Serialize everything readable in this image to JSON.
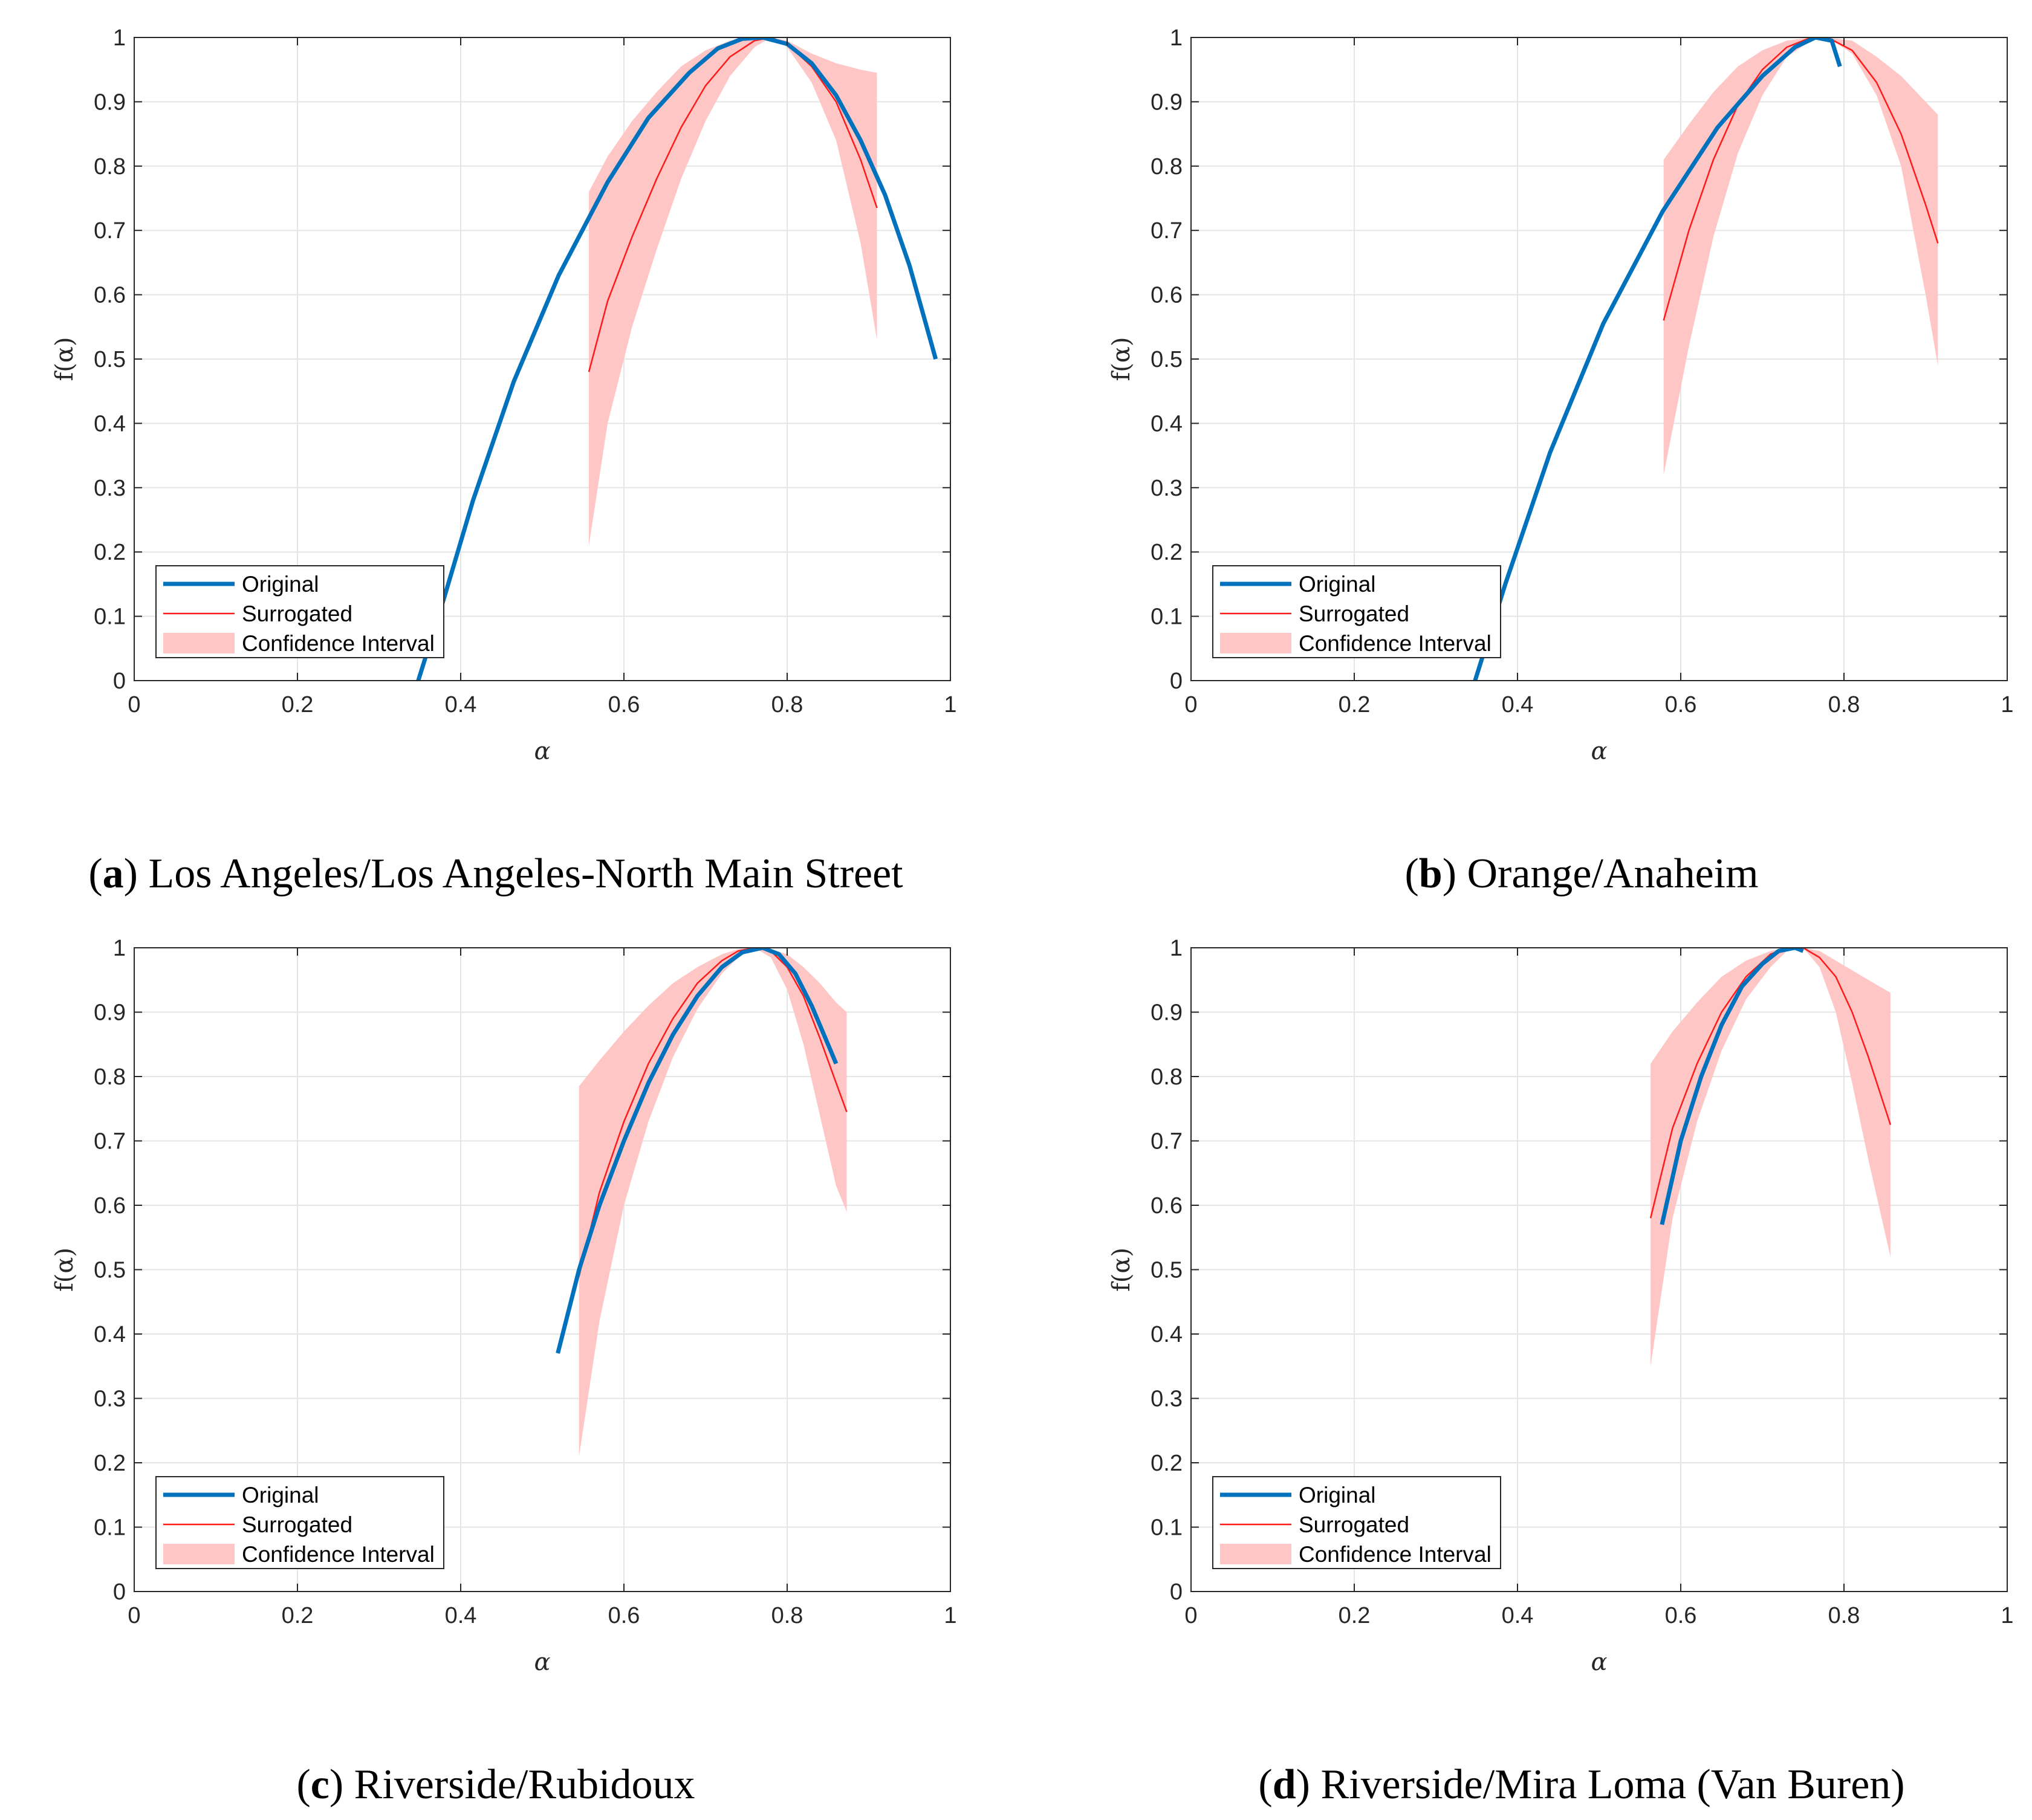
{
  "figure": {
    "legend_labels": [
      "Original",
      "Surrogated",
      "Confidence Interval"
    ],
    "colors": {
      "original": "#0072BD",
      "surrogated": "#FF1A1A",
      "ci_fill": "#FFC6C6",
      "grid": "#E5E5E5",
      "axis": "#262626"
    }
  },
  "chart_data": [
    {
      "type": "line",
      "caption_letter": "a",
      "caption": "Los Angeles/Los Angeles-North Main Street",
      "xlabel": "α",
      "ylabel": "f(α)",
      "xlim": [
        0,
        1
      ],
      "ylim": [
        0,
        1
      ],
      "xticks": [
        "0",
        "0.2",
        "0.4",
        "0.6",
        "0.8",
        "1"
      ],
      "yticks": [
        "0",
        "0.1",
        "0.2",
        "0.3",
        "0.4",
        "0.5",
        "0.6",
        "0.7",
        "0.8",
        "0.9",
        "1"
      ],
      "grid": true,
      "legend": "bottom-left",
      "series": [
        {
          "name": "Original",
          "x": [
            0.348,
            0.38,
            0.415,
            0.465,
            0.52,
            0.58,
            0.63,
            0.68,
            0.715,
            0.745,
            0.77,
            0.8,
            0.83,
            0.86,
            0.89,
            0.92,
            0.95,
            0.982
          ],
          "y": [
            0.0,
            0.13,
            0.28,
            0.465,
            0.63,
            0.775,
            0.875,
            0.945,
            0.983,
            0.998,
            1.0,
            0.99,
            0.96,
            0.91,
            0.84,
            0.755,
            0.645,
            0.5
          ]
        },
        {
          "name": "Surrogated",
          "x": [
            0.557,
            0.58,
            0.61,
            0.64,
            0.67,
            0.7,
            0.73,
            0.76,
            0.78,
            0.8,
            0.83,
            0.86,
            0.89,
            0.91
          ],
          "y": [
            0.48,
            0.59,
            0.69,
            0.78,
            0.86,
            0.925,
            0.97,
            0.995,
            1.0,
            0.99,
            0.955,
            0.9,
            0.81,
            0.735
          ]
        }
      ],
      "confidence_interval": {
        "x": [
          0.557,
          0.58,
          0.61,
          0.64,
          0.67,
          0.7,
          0.73,
          0.76,
          0.78,
          0.8,
          0.83,
          0.86,
          0.89,
          0.91
        ],
        "lower": [
          0.21,
          0.4,
          0.55,
          0.67,
          0.78,
          0.87,
          0.94,
          0.985,
          1.0,
          0.985,
          0.93,
          0.84,
          0.68,
          0.53
        ],
        "upper": [
          0.76,
          0.815,
          0.87,
          0.915,
          0.955,
          0.98,
          0.995,
          1.0,
          1.0,
          0.995,
          0.975,
          0.96,
          0.95,
          0.945
        ]
      }
    },
    {
      "type": "line",
      "caption_letter": "b",
      "caption": "Orange/Anaheim",
      "xlabel": "α",
      "ylabel": "f(α)",
      "xlim": [
        0,
        1
      ],
      "ylim": [
        0,
        1
      ],
      "xticks": [
        "0",
        "0.2",
        "0.4",
        "0.6",
        "0.8",
        "1"
      ],
      "yticks": [
        "0",
        "0.1",
        "0.2",
        "0.3",
        "0.4",
        "0.5",
        "0.6",
        "0.7",
        "0.8",
        "0.9",
        "1"
      ],
      "grid": true,
      "legend": "bottom-left",
      "series": [
        {
          "name": "Original",
          "x": [
            0.348,
            0.385,
            0.44,
            0.505,
            0.578,
            0.645,
            0.7,
            0.74,
            0.765,
            0.785,
            0.795
          ],
          "y": [
            0.0,
            0.15,
            0.355,
            0.555,
            0.73,
            0.86,
            0.94,
            0.985,
            1.0,
            0.995,
            0.955
          ]
        },
        {
          "name": "Surrogated",
          "x": [
            0.579,
            0.61,
            0.64,
            0.67,
            0.7,
            0.73,
            0.76,
            0.78,
            0.81,
            0.84,
            0.87,
            0.9,
            0.915
          ],
          "y": [
            0.56,
            0.7,
            0.81,
            0.895,
            0.95,
            0.985,
            1.0,
            1.0,
            0.98,
            0.93,
            0.85,
            0.74,
            0.68
          ]
        }
      ],
      "confidence_interval": {
        "x": [
          0.579,
          0.61,
          0.64,
          0.67,
          0.7,
          0.73,
          0.76,
          0.78,
          0.81,
          0.84,
          0.87,
          0.9,
          0.915
        ],
        "lower": [
          0.32,
          0.52,
          0.69,
          0.82,
          0.91,
          0.97,
          0.995,
          1.0,
          0.975,
          0.91,
          0.8,
          0.6,
          0.49
        ],
        "upper": [
          0.81,
          0.865,
          0.915,
          0.955,
          0.98,
          0.995,
          1.0,
          1.0,
          0.995,
          0.97,
          0.94,
          0.9,
          0.88
        ]
      }
    },
    {
      "type": "line",
      "caption_letter": "c",
      "caption": "Riverside/Rubidoux",
      "xlabel": "α",
      "ylabel": "f(α)",
      "xlim": [
        0,
        1
      ],
      "ylim": [
        0,
        1
      ],
      "xticks": [
        "0",
        "0.2",
        "0.4",
        "0.6",
        "0.8",
        "1"
      ],
      "yticks": [
        "0",
        "0.1",
        "0.2",
        "0.3",
        "0.4",
        "0.5",
        "0.6",
        "0.7",
        "0.8",
        "0.9",
        "1"
      ],
      "grid": true,
      "legend": "bottom-left",
      "series": [
        {
          "name": "Original",
          "x": [
            0.519,
            0.545,
            0.57,
            0.6,
            0.63,
            0.66,
            0.69,
            0.72,
            0.745,
            0.77,
            0.79,
            0.81,
            0.83,
            0.845,
            0.86
          ],
          "y": [
            0.37,
            0.5,
            0.6,
            0.7,
            0.79,
            0.865,
            0.925,
            0.97,
            0.993,
            1.0,
            0.99,
            0.96,
            0.91,
            0.865,
            0.82
          ]
        },
        {
          "name": "Surrogated",
          "x": [
            0.545,
            0.57,
            0.6,
            0.63,
            0.66,
            0.69,
            0.72,
            0.74,
            0.76,
            0.78,
            0.8,
            0.82,
            0.84,
            0.86,
            0.873
          ],
          "y": [
            0.49,
            0.62,
            0.73,
            0.82,
            0.89,
            0.945,
            0.98,
            0.995,
            1.0,
            0.995,
            0.97,
            0.925,
            0.86,
            0.79,
            0.745
          ]
        }
      ],
      "confidence_interval": {
        "x": [
          0.545,
          0.57,
          0.6,
          0.63,
          0.66,
          0.69,
          0.72,
          0.74,
          0.76,
          0.78,
          0.8,
          0.82,
          0.84,
          0.86,
          0.873
        ],
        "lower": [
          0.21,
          0.42,
          0.6,
          0.73,
          0.83,
          0.905,
          0.96,
          0.985,
          1.0,
          0.985,
          0.935,
          0.85,
          0.74,
          0.63,
          0.59
        ],
        "upper": [
          0.785,
          0.825,
          0.87,
          0.91,
          0.945,
          0.97,
          0.99,
          0.998,
          1.0,
          0.998,
          0.99,
          0.97,
          0.945,
          0.915,
          0.9
        ]
      }
    },
    {
      "type": "line",
      "caption_letter": "d",
      "caption": "Riverside/Mira Loma (Van Buren)",
      "xlabel": "α",
      "ylabel": "f(α)",
      "xlim": [
        0,
        1
      ],
      "ylim": [
        0,
        1
      ],
      "xticks": [
        "0",
        "0.2",
        "0.4",
        "0.6",
        "0.8",
        "1"
      ],
      "yticks": [
        "0",
        "0.1",
        "0.2",
        "0.3",
        "0.4",
        "0.5",
        "0.6",
        "0.7",
        "0.8",
        "0.9",
        "1"
      ],
      "grid": true,
      "legend": "bottom-left",
      "series": [
        {
          "name": "Original",
          "x": [
            0.577,
            0.6,
            0.625,
            0.65,
            0.675,
            0.7,
            0.72,
            0.74,
            0.75
          ],
          "y": [
            0.57,
            0.7,
            0.8,
            0.88,
            0.94,
            0.975,
            0.995,
            1.0,
            0.995
          ]
        },
        {
          "name": "Surrogated",
          "x": [
            0.563,
            0.59,
            0.62,
            0.65,
            0.68,
            0.71,
            0.73,
            0.75,
            0.77,
            0.79,
            0.81,
            0.83,
            0.857
          ],
          "y": [
            0.58,
            0.72,
            0.82,
            0.9,
            0.955,
            0.99,
            1.0,
            1.0,
            0.985,
            0.955,
            0.9,
            0.83,
            0.725
          ]
        }
      ],
      "confidence_interval": {
        "x": [
          0.563,
          0.59,
          0.62,
          0.65,
          0.68,
          0.71,
          0.73,
          0.75,
          0.77,
          0.79,
          0.81,
          0.83,
          0.857
        ],
        "lower": [
          0.35,
          0.58,
          0.73,
          0.84,
          0.92,
          0.97,
          0.995,
          1.0,
          0.97,
          0.9,
          0.79,
          0.67,
          0.52
        ],
        "upper": [
          0.82,
          0.87,
          0.915,
          0.955,
          0.98,
          0.995,
          1.0,
          1.0,
          0.995,
          0.98,
          0.965,
          0.95,
          0.93
        ]
      }
    }
  ]
}
